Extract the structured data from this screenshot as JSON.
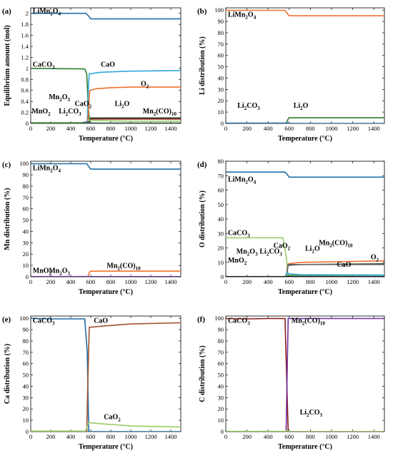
{
  "colors": {
    "blue": "#1f6fa8",
    "green": "#2e7d32",
    "orange": "#f07030",
    "cyan": "#2ea8d8",
    "gray": "#666666",
    "brown": "#a0522d",
    "olive": "#2d4a2d",
    "purple": "#7030a0",
    "darkred": "#8b1a1a",
    "lightgreen": "#9ccc65",
    "navy": "#1a2a6c",
    "black": "#1a1a1a"
  },
  "chart_data": [
    {
      "panel": "(a)",
      "type": "line",
      "xlabel": "Temperature (°C)",
      "ylabel": "Equilibrium amount (mol)",
      "xlim": [
        0,
        1500
      ],
      "ylim": [
        0,
        2.1
      ],
      "xticks": [
        0,
        200,
        400,
        600,
        800,
        1000,
        1200,
        1400
      ],
      "yticks": [
        0,
        0.2,
        0.4,
        0.6,
        0.8,
        1,
        1.2,
        1.4,
        1.6,
        1.8,
        2
      ],
      "ytick_labels": [
        "0",
        "0.2",
        "0.4",
        "0.6",
        "0.8",
        "1",
        "1.2",
        "1.4",
        "1.6",
        "1.8",
        "2"
      ],
      "series": [
        {
          "name": "LiMn2O4",
          "color": "blue",
          "x": [
            0,
            550,
            580,
            600,
            1500
          ],
          "y": [
            2.0,
            2.0,
            1.95,
            1.9,
            1.9
          ]
        },
        {
          "name": "CaCO3",
          "color": "green",
          "x": [
            0,
            540,
            560,
            575,
            590,
            1500
          ],
          "y": [
            1.0,
            0.99,
            0.9,
            0.3,
            0.0,
            0.0
          ]
        },
        {
          "name": "CaO",
          "color": "cyan",
          "x": [
            0,
            565,
            575,
            585,
            700,
            1000,
            1500
          ],
          "y": [
            0,
            0,
            0.6,
            0.9,
            0.93,
            0.95,
            0.96
          ]
        },
        {
          "name": "O2",
          "color": "orange",
          "x": [
            0,
            570,
            590,
            650,
            800,
            1000,
            1500
          ],
          "y": [
            0,
            0,
            0.6,
            0.63,
            0.65,
            0.66,
            0.66
          ]
        },
        {
          "name": "Li2O",
          "color": "darkred",
          "x": [
            0,
            580,
            600,
            1500
          ],
          "y": [
            0,
            0,
            0.08,
            0.08
          ]
        },
        {
          "name": "Mn2(CO)10",
          "color": "olive",
          "x": [
            0,
            580,
            600,
            1500
          ],
          "y": [
            0,
            0,
            0.1,
            0.1
          ]
        },
        {
          "name": "CaO2",
          "color": "lightgreen",
          "x": [
            0,
            560,
            580,
            700,
            1000,
            1500
          ],
          "y": [
            0,
            0,
            0.06,
            0.05,
            0.04,
            0.04
          ]
        },
        {
          "name": "Mn2O3",
          "color": "purple",
          "x": [
            0,
            500,
            575,
            600,
            1500
          ],
          "y": [
            0,
            0.01,
            0.03,
            0.0,
            0.0
          ]
        },
        {
          "name": "MnO2",
          "color": "navy",
          "x": [
            0,
            1500
          ],
          "y": [
            0.005,
            0.005
          ]
        },
        {
          "name": "Li2CO3",
          "color": "green",
          "x": [
            0,
            580,
            600,
            1500
          ],
          "y": [
            0.01,
            0.01,
            0.0,
            0.0
          ]
        }
      ],
      "annotations": [
        {
          "text": "LiMn",
          "sub": "2",
          "text2": "O",
          "sub2": "4",
          "pos": [
            20,
            2.0
          ]
        },
        {
          "text": "CaCO",
          "sub": "3",
          "pos": [
            20,
            1.03
          ]
        },
        {
          "text": "CaO",
          "pos": [
            700,
            1.03
          ]
        },
        {
          "text": "O",
          "sub": "2",
          "pos": [
            1100,
            0.68
          ]
        },
        {
          "text": "Mn",
          "sub": "2",
          "text2": "O",
          "sub2": "3",
          "pos": [
            180,
            0.44
          ]
        },
        {
          "text": "CaO",
          "sub": "2",
          "pos": [
            440,
            0.32
          ]
        },
        {
          "text": "Li",
          "sub": "2",
          "text2": "O",
          "pos": [
            840,
            0.32
          ]
        },
        {
          "text": "MnO",
          "sub": "2",
          "pos": [
            10,
            0.18
          ]
        },
        {
          "text": "Li",
          "sub": "2",
          "text2": "CO",
          "sub2": "3",
          "pos": [
            280,
            0.18
          ]
        },
        {
          "text": "Mn",
          "sub": "2",
          "text2": "(CO)",
          "sub2": "10",
          "pos": [
            1120,
            0.18
          ]
        }
      ]
    },
    {
      "panel": "(b)",
      "type": "line",
      "xlabel": "Temperature (°C)",
      "ylabel": "Li distribution (%)",
      "xlim": [
        0,
        1500
      ],
      "ylim": [
        0,
        102
      ],
      "xticks": [
        0,
        200,
        400,
        600,
        800,
        1000,
        1200,
        1400
      ],
      "yticks": [
        0,
        10,
        20,
        30,
        40,
        50,
        60,
        70,
        80,
        90,
        100
      ],
      "ytick_labels": [
        "0",
        "10",
        "20",
        "30",
        "40",
        "50",
        "60",
        "70",
        "80",
        "90",
        "100"
      ],
      "series": [
        {
          "name": "LiMn2O4",
          "color": "orange",
          "x": [
            0,
            560,
            590,
            600,
            1500
          ],
          "y": [
            99.8,
            99.8,
            96,
            95,
            95
          ]
        },
        {
          "name": "Li2O",
          "color": "green",
          "x": [
            0,
            570,
            590,
            600,
            1500
          ],
          "y": [
            0,
            0,
            4,
            5,
            5
          ]
        },
        {
          "name": "Li2CO3",
          "color": "blue",
          "x": [
            0,
            560,
            580,
            600,
            1500
          ],
          "y": [
            0.2,
            0.3,
            0.5,
            0,
            0
          ]
        }
      ],
      "annotations": [
        {
          "text": "LiMn",
          "sub": "2",
          "text2": "O",
          "sub2": "4",
          "pos": [
            20,
            94
          ]
        },
        {
          "text": "Li",
          "sub": "2",
          "text2": "CO",
          "sub2": "3",
          "pos": [
            110,
            14
          ]
        },
        {
          "text": "Li",
          "sub": "2",
          "text2": "O",
          "pos": [
            640,
            14
          ]
        }
      ]
    },
    {
      "panel": "(c)",
      "type": "line",
      "xlabel": "Temperature (°C)",
      "ylabel": "Mn distribution (%)",
      "xlim": [
        0,
        1500
      ],
      "ylim": [
        0,
        102
      ],
      "xticks": [
        0,
        200,
        400,
        600,
        800,
        1000,
        1200,
        1400
      ],
      "yticks": [
        0,
        10,
        20,
        30,
        40,
        50,
        60,
        70,
        80,
        90,
        100
      ],
      "ytick_labels": [
        "0",
        "10",
        "20",
        "30",
        "40",
        "50",
        "60",
        "70",
        "80",
        "90",
        "100"
      ],
      "series": [
        {
          "name": "LiMn2O4",
          "color": "blue",
          "x": [
            0,
            560,
            590,
            600,
            1500
          ],
          "y": [
            99.8,
            99.8,
            96,
            95,
            95
          ]
        },
        {
          "name": "Mn2(CO)10",
          "color": "orange",
          "x": [
            0,
            570,
            590,
            600,
            1500
          ],
          "y": [
            0,
            0,
            4.5,
            5,
            5
          ]
        },
        {
          "name": "MnO2",
          "color": "navy",
          "x": [
            0,
            1500
          ],
          "y": [
            0.1,
            0.1
          ]
        },
        {
          "name": "Mn2O3",
          "color": "purple",
          "x": [
            0,
            580,
            600,
            1500
          ],
          "y": [
            0.2,
            0.2,
            0,
            0
          ]
        }
      ],
      "annotations": [
        {
          "text": "LiMn",
          "sub": "2",
          "text2": "O",
          "sub2": "4",
          "pos": [
            20,
            94
          ]
        },
        {
          "text": "MnO",
          "sub": "2",
          "pos": [
            20,
            3.5
          ]
        },
        {
          "text": "Mn",
          "sub": "2",
          "text2": "O",
          "sub2": "3",
          "pos": [
            180,
            3.5
          ]
        },
        {
          "text": "Mn",
          "sub": "2",
          "text2": "(CO)",
          "sub2": "10",
          "pos": [
            760,
            8
          ]
        }
      ]
    },
    {
      "panel": "(d)",
      "type": "line",
      "xlabel": "Temperature (°C)",
      "ylabel": "O distribution (%)",
      "xlim": [
        0,
        1500
      ],
      "ylim": [
        0,
        80
      ],
      "xticks": [
        0,
        200,
        400,
        600,
        800,
        1000,
        1200,
        1400
      ],
      "yticks": [
        0,
        10,
        20,
        30,
        40,
        50,
        60,
        70,
        80
      ],
      "ytick_labels": [
        "0",
        "10",
        "20",
        "30",
        "40",
        "50",
        "60",
        "70",
        "80"
      ],
      "series": [
        {
          "name": "LiMn2O4",
          "color": "blue",
          "x": [
            0,
            560,
            590,
            600,
            1500
          ],
          "y": [
            72.5,
            72.5,
            70,
            69,
            69
          ]
        },
        {
          "name": "CaCO3",
          "color": "lightgreen",
          "x": [
            0,
            540,
            570,
            590,
            1500
          ],
          "y": [
            27,
            27,
            15,
            0,
            0
          ]
        },
        {
          "name": "O2",
          "color": "orange",
          "x": [
            0,
            570,
            590,
            700,
            1500
          ],
          "y": [
            0,
            0,
            9,
            10,
            11
          ]
        },
        {
          "name": "Mn2(CO)10",
          "color": "olive",
          "x": [
            0,
            570,
            590,
            700,
            1500
          ],
          "y": [
            0,
            0,
            8,
            8.5,
            9
          ]
        },
        {
          "name": "CaO",
          "color": "gray",
          "x": [
            0,
            570,
            590,
            1500
          ],
          "y": [
            0,
            0,
            8.5,
            8.5
          ]
        },
        {
          "name": "Li2O",
          "color": "green",
          "x": [
            0,
            570,
            590,
            1500
          ],
          "y": [
            0,
            0,
            1,
            1
          ]
        },
        {
          "name": "CaO2",
          "color": "cyan",
          "x": [
            0,
            560,
            580,
            600,
            700,
            1500
          ],
          "y": [
            0,
            0,
            3,
            2,
            1.5,
            1.2
          ]
        },
        {
          "name": "Li2CO3",
          "color": "lightgreen",
          "x": [
            0,
            570,
            590,
            1500
          ],
          "y": [
            0.2,
            0.2,
            0,
            0
          ]
        },
        {
          "name": "Mn2O3",
          "color": "navy",
          "x": [
            0,
            1500
          ],
          "y": [
            0.1,
            0.1
          ]
        },
        {
          "name": "MnO2",
          "color": "black",
          "x": [
            0,
            1500
          ],
          "y": [
            0.05,
            0.05
          ]
        }
      ],
      "annotations": [
        {
          "text": "LiMn",
          "sub": "2",
          "text2": "O",
          "sub2": "4",
          "pos": [
            20,
            66
          ]
        },
        {
          "text": "CaCO",
          "sub": "3",
          "pos": [
            20,
            29
          ]
        },
        {
          "text": "Mn",
          "sub": "2",
          "text2": "O",
          "sub2": "3",
          "pos": [
            100,
            16
          ]
        },
        {
          "text": "CaO",
          "sub": "2",
          "pos": [
            450,
            20
          ]
        },
        {
          "text": "Li",
          "sub": "2",
          "text2": "O",
          "pos": [
            750,
            18
          ]
        },
        {
          "text": "Mn",
          "sub": "2",
          "text2": "(CO)",
          "sub2": "10",
          "pos": [
            880,
            22
          ]
        },
        {
          "text": "Li",
          "sub": "2",
          "text2": "CO",
          "sub2": "3",
          "pos": [
            320,
            16
          ]
        },
        {
          "text": "MnO",
          "sub": "2",
          "pos": [
            20,
            10
          ]
        },
        {
          "text": "O",
          "sub": "2",
          "pos": [
            1370,
            12
          ]
        },
        {
          "text": "CaO",
          "pos": [
            1050,
            7
          ]
        }
      ]
    },
    {
      "panel": "(e)",
      "type": "line",
      "xlabel": "Temperature (°C)",
      "ylabel": "Ca distribution (%)",
      "xlim": [
        0,
        1500
      ],
      "ylim": [
        0,
        102
      ],
      "xticks": [
        0,
        200,
        400,
        600,
        800,
        1000,
        1200,
        1400
      ],
      "yticks": [
        0,
        10,
        20,
        30,
        40,
        50,
        60,
        70,
        80,
        90,
        100
      ],
      "ytick_labels": [
        "0",
        "10",
        "20",
        "30",
        "40",
        "50",
        "60",
        "70",
        "80",
        "90",
        "100"
      ],
      "series": [
        {
          "name": "CaCO3",
          "color": "blue",
          "x": [
            0,
            200,
            400,
            540,
            565,
            580,
            1500
          ],
          "y": [
            100,
            99.5,
            99.5,
            99.5,
            70,
            0,
            0
          ]
        },
        {
          "name": "CaO",
          "color": "brown",
          "x": [
            0,
            560,
            570,
            585,
            700,
            1000,
            1500
          ],
          "y": [
            0,
            0,
            40,
            92,
            93,
            95,
            96
          ]
        },
        {
          "name": "CaO2",
          "color": "lightgreen",
          "x": [
            0,
            550,
            565,
            580,
            700,
            1000,
            1500
          ],
          "y": [
            0.5,
            0.5,
            5,
            8,
            7,
            5,
            4
          ]
        }
      ],
      "annotations": [
        {
          "text": "CaCO",
          "sub": "3",
          "pos": [
            20,
            96
          ]
        },
        {
          "text": "CaO",
          "pos": [
            630,
            96
          ]
        },
        {
          "text": "CaO",
          "sub": "2",
          "pos": [
            730,
            11
          ]
        }
      ]
    },
    {
      "panel": "(f)",
      "type": "line",
      "xlabel": "Temperature (°C)",
      "ylabel": "C distribution (%)",
      "xlim": [
        0,
        1500
      ],
      "ylim": [
        0,
        102
      ],
      "xticks": [
        0,
        200,
        400,
        600,
        800,
        1000,
        1200,
        1400
      ],
      "yticks": [
        0,
        10,
        20,
        30,
        40,
        50,
        60,
        70,
        80,
        90,
        100
      ],
      "ytick_labels": [
        "0",
        "10",
        "20",
        "30",
        "40",
        "50",
        "60",
        "70",
        "80",
        "90",
        "100"
      ],
      "series": [
        {
          "name": "CaCO3",
          "color": "darkred",
          "x": [
            0,
            200,
            400,
            560,
            575,
            590,
            1500
          ],
          "y": [
            99.8,
            99.5,
            99.8,
            99.8,
            50,
            0,
            0
          ]
        },
        {
          "name": "Mn2(CO)10",
          "color": "purple",
          "x": [
            0,
            570,
            580,
            590,
            1500
          ],
          "y": [
            0,
            0,
            50,
            99.8,
            99.8
          ]
        },
        {
          "name": "Li2CO3",
          "color": "lightgreen",
          "x": [
            0,
            560,
            580,
            600,
            1500
          ],
          "y": [
            0.2,
            0.2,
            1,
            0,
            0
          ]
        }
      ],
      "annotations": [
        {
          "text": "CaCO",
          "sub": "3",
          "pos": [
            20,
            96
          ]
        },
        {
          "text": "Mn",
          "sub": "2",
          "text2": "(CO)",
          "sub2": "10",
          "pos": [
            620,
            96
          ]
        },
        {
          "text": "Li",
          "sub": "2",
          "text2": "CO",
          "sub2": "3",
          "pos": [
            700,
            15
          ]
        }
      ]
    }
  ]
}
